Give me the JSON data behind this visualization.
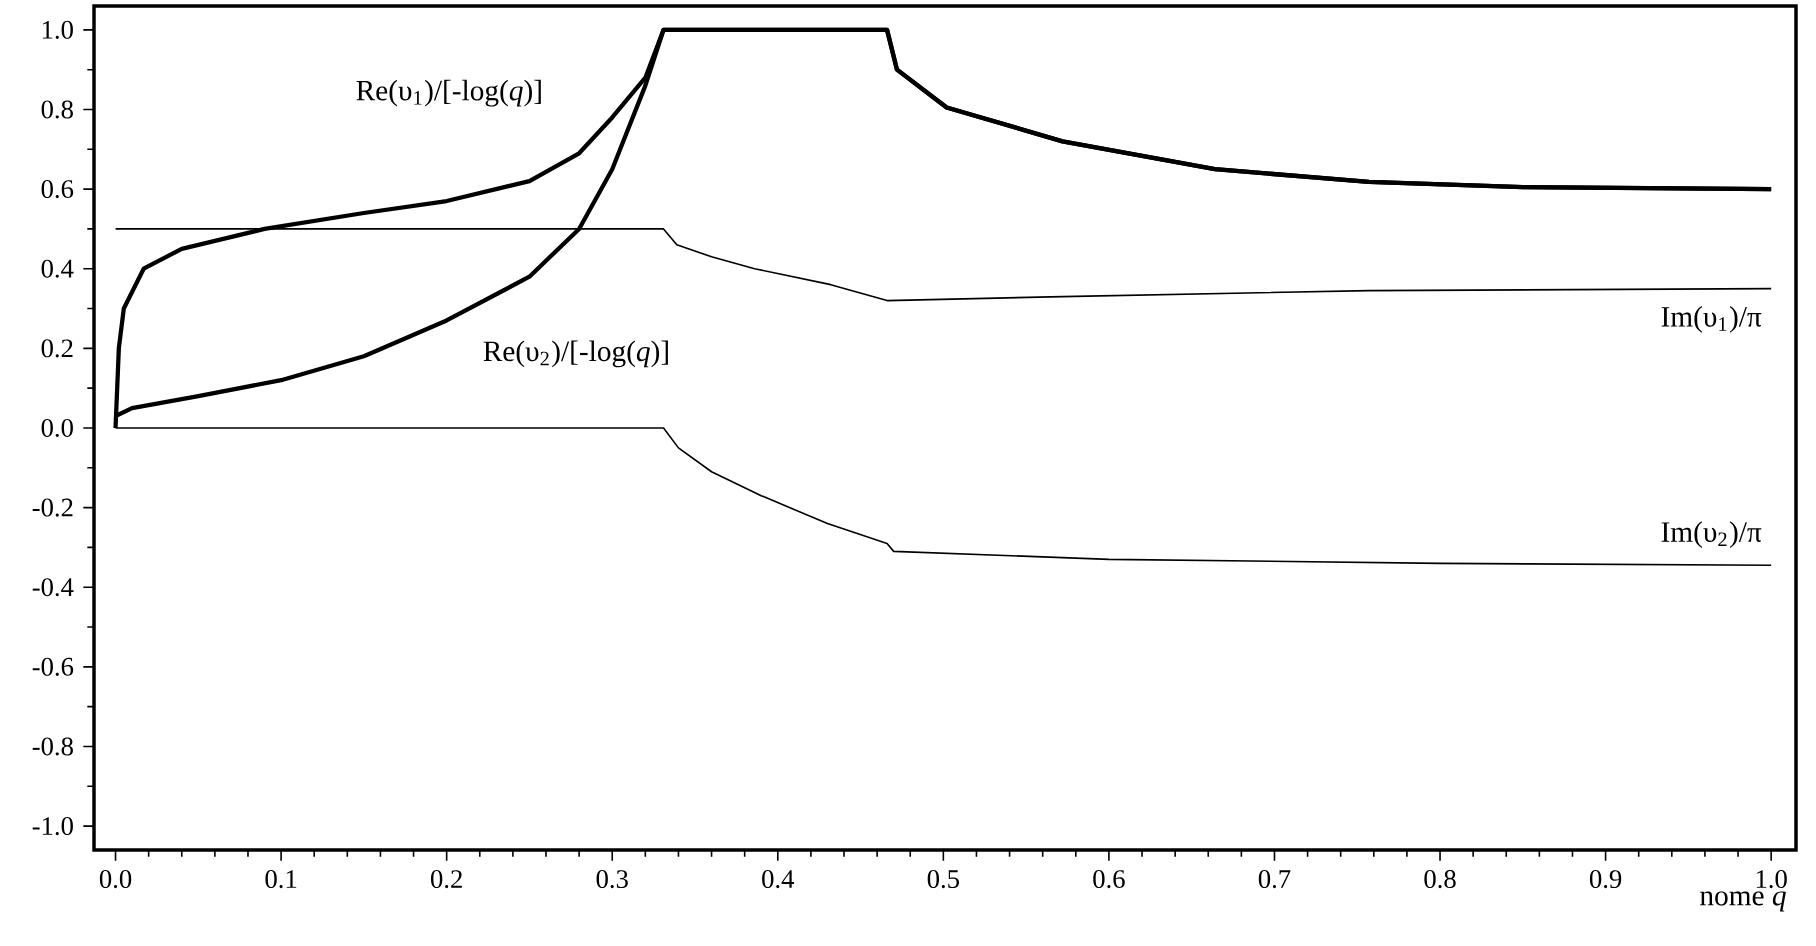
{
  "chart_data": {
    "type": "line",
    "xlabel": "nome *q*",
    "xlim": [
      -0.013,
      1.015
    ],
    "ylim": [
      -1.06,
      1.06
    ],
    "xticks": [
      {
        "value": 0,
        "label": "0.0"
      },
      0.1,
      0.2,
      0.3,
      0.4,
      0.5,
      0.6,
      0.7,
      0.8,
      0.9,
      {
        "value": 1,
        "label": "1.0"
      }
    ],
    "yticks": [
      {
        "value": -1,
        "label": "-1.0"
      },
      -0.8,
      -0.6,
      -0.4,
      -0.2,
      {
        "value": 0,
        "label": "0.0"
      },
      0.2,
      0.4,
      0.6,
      0.8,
      {
        "value": 1,
        "label": "1.0"
      }
    ],
    "grid": false,
    "marker": "none",
    "line_style": "solid",
    "series": [
      {
        "name": "Re(υ$_{1}$)/[-log(*q*)]",
        "color": "#000000",
        "x": [
          0,
          0.002,
          0.005,
          0.017,
          0.04,
          0.09,
          0.15,
          0.2,
          0.25,
          0.28,
          0.3,
          0.32,
          0.331,
          0.466,
          0.472,
          0.502,
          0.572,
          0.664,
          0.757,
          0.85,
          1.0
        ],
        "values": [
          0,
          0.2,
          0.3,
          0.4,
          0.45,
          0.5,
          0.54,
          0.57,
          0.62,
          0.69,
          0.78,
          0.88,
          1.0,
          1.0,
          0.9,
          0.805,
          0.72,
          0.65,
          0.618,
          0.605,
          0.6
        ]
      },
      {
        "name": "Re(υ$_{2}$)/[-log(*q*)]",
        "color": "#000000",
        "x": [
          0,
          0.01,
          0.05,
          0.1,
          0.15,
          0.2,
          0.25,
          0.28,
          0.3,
          0.32,
          0.331,
          0.466,
          0.472,
          0.502,
          0.572,
          0.664,
          0.757,
          0.85,
          1.0
        ],
        "values": [
          0.03,
          0.05,
          0.08,
          0.12,
          0.18,
          0.27,
          0.38,
          0.5,
          0.65,
          0.86,
          1.0,
          1.0,
          0.9,
          0.805,
          0.72,
          0.65,
          0.618,
          0.605,
          0.6
        ]
      },
      {
        "name": "Im(υ$_{1}$)/π",
        "color": "#000000",
        "x": [
          0,
          0.331,
          0.339,
          0.36,
          0.386,
          0.432,
          0.466,
          0.572,
          0.757,
          1.0
        ],
        "values": [
          0.5,
          0.5,
          0.46,
          0.43,
          0.4,
          0.36,
          0.32,
          0.33,
          0.345,
          0.35
        ]
      },
      {
        "name": "Im(υ$_{2}$)/π",
        "color": "#000000",
        "x": [
          0,
          0.331,
          0.34,
          0.36,
          0.39,
          0.43,
          0.466,
          0.47,
          0.6,
          0.8,
          1.0
        ],
        "values": [
          0,
          0,
          -0.05,
          -0.11,
          -0.17,
          -0.24,
          -0.29,
          -0.31,
          -0.33,
          -0.34,
          -0.345
        ]
      }
    ]
  }
}
